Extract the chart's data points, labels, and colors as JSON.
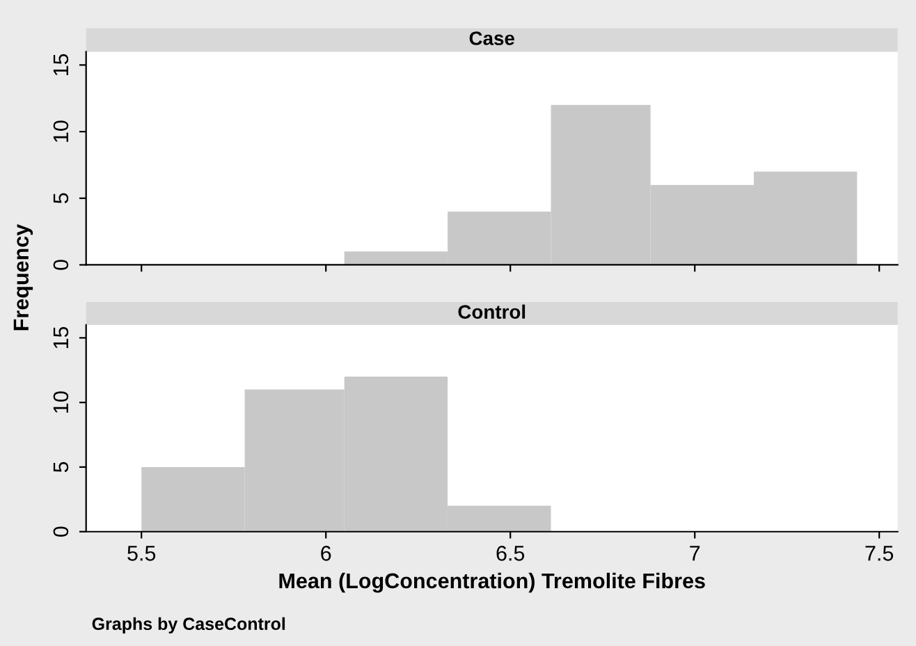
{
  "chart_data": [
    {
      "type": "histogram",
      "title": "Case",
      "ylabel": "Frequency",
      "bins": [
        6.05,
        6.33,
        6.61,
        6.88,
        7.16,
        7.44
      ],
      "values": [
        1,
        4,
        12,
        6,
        7
      ],
      "color": "#c8c8c8",
      "xlim": [
        5.35,
        7.55
      ],
      "xticks": [
        5.5,
        6,
        6.5,
        7,
        7.5
      ],
      "ylim": [
        0,
        16
      ],
      "yticks": [
        0,
        5,
        10,
        15
      ],
      "tick_labels": "y",
      "grid": false
    },
    {
      "type": "histogram",
      "title": "Control",
      "xlabel": "Mean (LogConcentration) Tremolite Fibres",
      "bins": [
        5.5,
        5.78,
        6.05,
        6.33,
        6.61
      ],
      "values": [
        5,
        11,
        12,
        2
      ],
      "color": "#c8c8c8",
      "xlim": [
        5.35,
        7.55
      ],
      "xticks": [
        5.5,
        6,
        6.5,
        7,
        7.5
      ],
      "ylim": [
        0,
        16
      ],
      "yticks": [
        0,
        5,
        10,
        15
      ],
      "grid": false,
      "annotations": [
        "Graphs by CaseControl"
      ]
    }
  ]
}
